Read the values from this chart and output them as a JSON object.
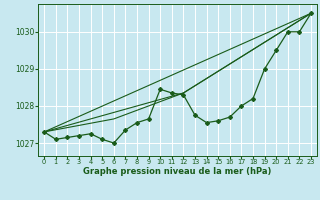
{
  "xlabel": "Graphe pression niveau de la mer (hPa)",
  "xlim": [
    -0.5,
    23.5
  ],
  "ylim": [
    1026.65,
    1030.75
  ],
  "yticks": [
    1027,
    1028,
    1029,
    1030
  ],
  "xticks": [
    0,
    1,
    2,
    3,
    4,
    5,
    6,
    7,
    8,
    9,
    10,
    11,
    12,
    13,
    14,
    15,
    16,
    17,
    18,
    19,
    20,
    21,
    22,
    23
  ],
  "background_color": "#c8e8f0",
  "grid_color": "#ffffff",
  "line_color": "#1a5c1a",
  "series1_x": [
    0,
    1,
    2,
    3,
    4,
    5,
    6,
    7,
    8,
    9,
    10,
    11,
    12,
    13,
    14,
    15,
    16,
    17,
    18,
    19,
    20,
    21,
    22,
    23
  ],
  "series1_y": [
    1027.3,
    1027.1,
    1027.15,
    1027.2,
    1027.25,
    1027.1,
    1027.0,
    1027.35,
    1027.55,
    1027.65,
    1028.45,
    1028.35,
    1028.3,
    1027.75,
    1027.55,
    1027.6,
    1027.7,
    1028.0,
    1028.2,
    1029.0,
    1029.5,
    1030.0,
    1030.0,
    1030.5
  ],
  "series2_x": [
    0,
    23
  ],
  "series2_y": [
    1027.3,
    1030.5
  ],
  "series3_x": [
    0,
    12,
    23
  ],
  "series3_y": [
    1027.3,
    1028.35,
    1030.5
  ],
  "series4_x": [
    0,
    6,
    12,
    23
  ],
  "series4_y": [
    1027.3,
    1027.65,
    1028.35,
    1030.5
  ]
}
